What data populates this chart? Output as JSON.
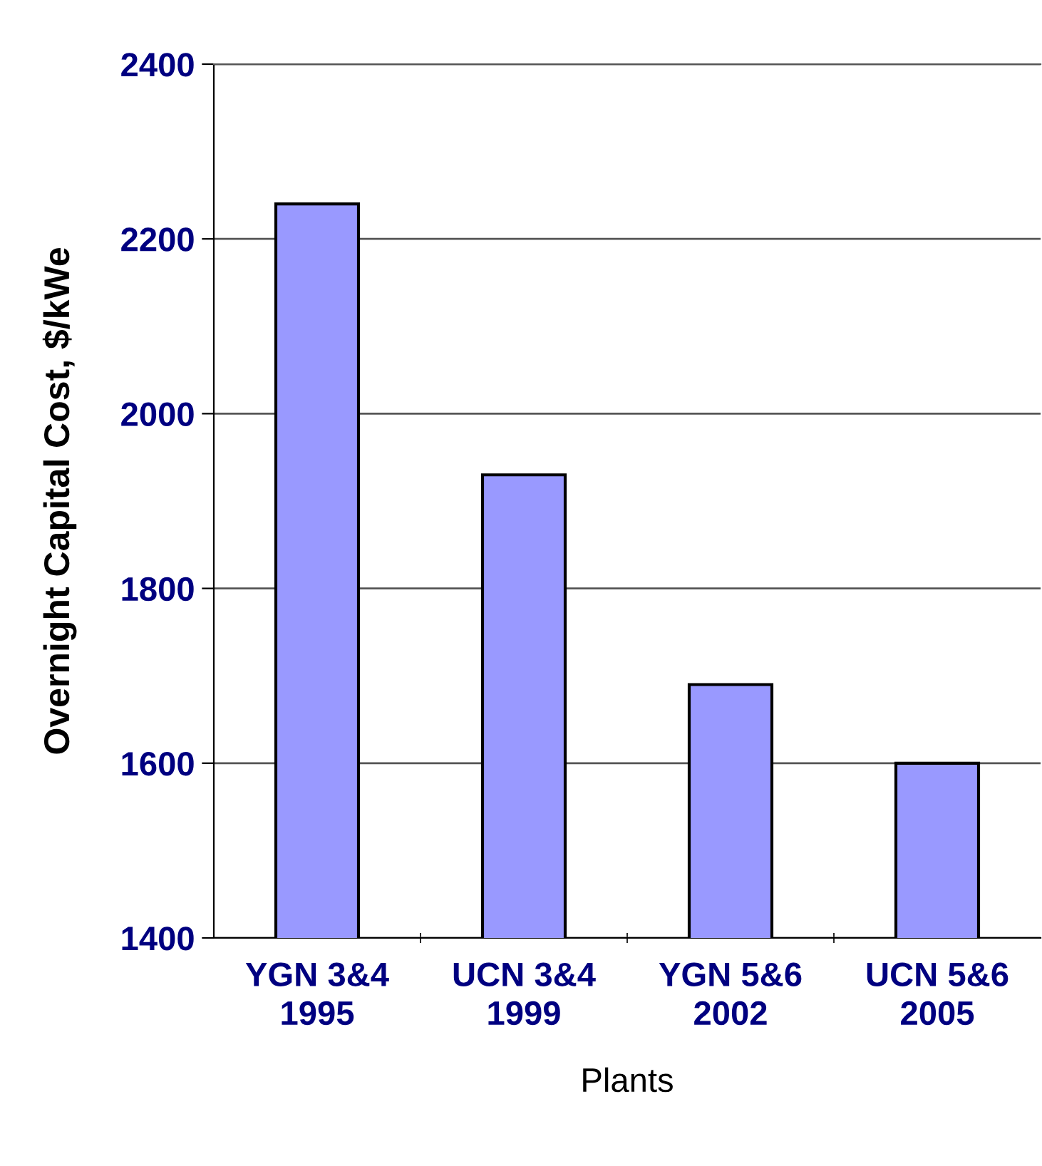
{
  "chart_data": {
    "type": "bar",
    "xlabel": "Plants",
    "ylabel": "Overnight Capital Cost, $/kWe",
    "categories": [
      "YGN 3&4\n1995",
      "UCN 3&4\n1999",
      "YGN 5&6\n2002",
      "UCN 5&6\n2005"
    ],
    "values": [
      2240,
      1930,
      1690,
      1600
    ],
    "color": "#9999ff",
    "ylim": [
      1400,
      2400
    ],
    "yticks": [
      1400,
      1600,
      1800,
      2000,
      2200,
      2400
    ],
    "grid": "y"
  }
}
